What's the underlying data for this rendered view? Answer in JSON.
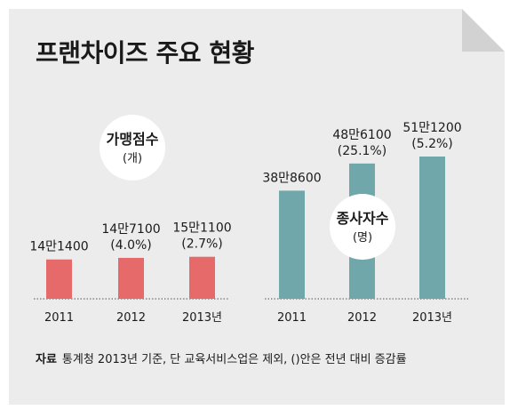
{
  "title": "프랜차이즈 주요 현황",
  "source": {
    "label": "자료",
    "text": "통계청 2013년 기준, 단 교육서비스업은 제외, ()안은 전년 대비 증감률"
  },
  "colors": {
    "stores": "#e76a6a",
    "employees": "#6fa7aa",
    "background": "#ececec"
  },
  "chart_data": [
    {
      "type": "bar",
      "title": "가맹점수",
      "unit": "(개)",
      "categories": [
        "2011",
        "2012",
        "2013년"
      ],
      "values": [
        141400,
        147100,
        151100
      ],
      "value_labels": [
        "14만1400",
        "14만7100",
        "15만1100"
      ],
      "change_labels": [
        "",
        "(4.0%)",
        "(2.7%)"
      ],
      "ylim": [
        0,
        600000
      ]
    },
    {
      "type": "bar",
      "title": "종사자수",
      "unit": "(명)",
      "categories": [
        "2011",
        "2012",
        "2013년"
      ],
      "values": [
        388600,
        486100,
        511200
      ],
      "value_labels": [
        "38만8600",
        "48만6100",
        "51만1200"
      ],
      "change_labels": [
        "",
        "(25.1%)",
        "(5.2%)"
      ],
      "ylim": [
        0,
        600000
      ]
    }
  ]
}
